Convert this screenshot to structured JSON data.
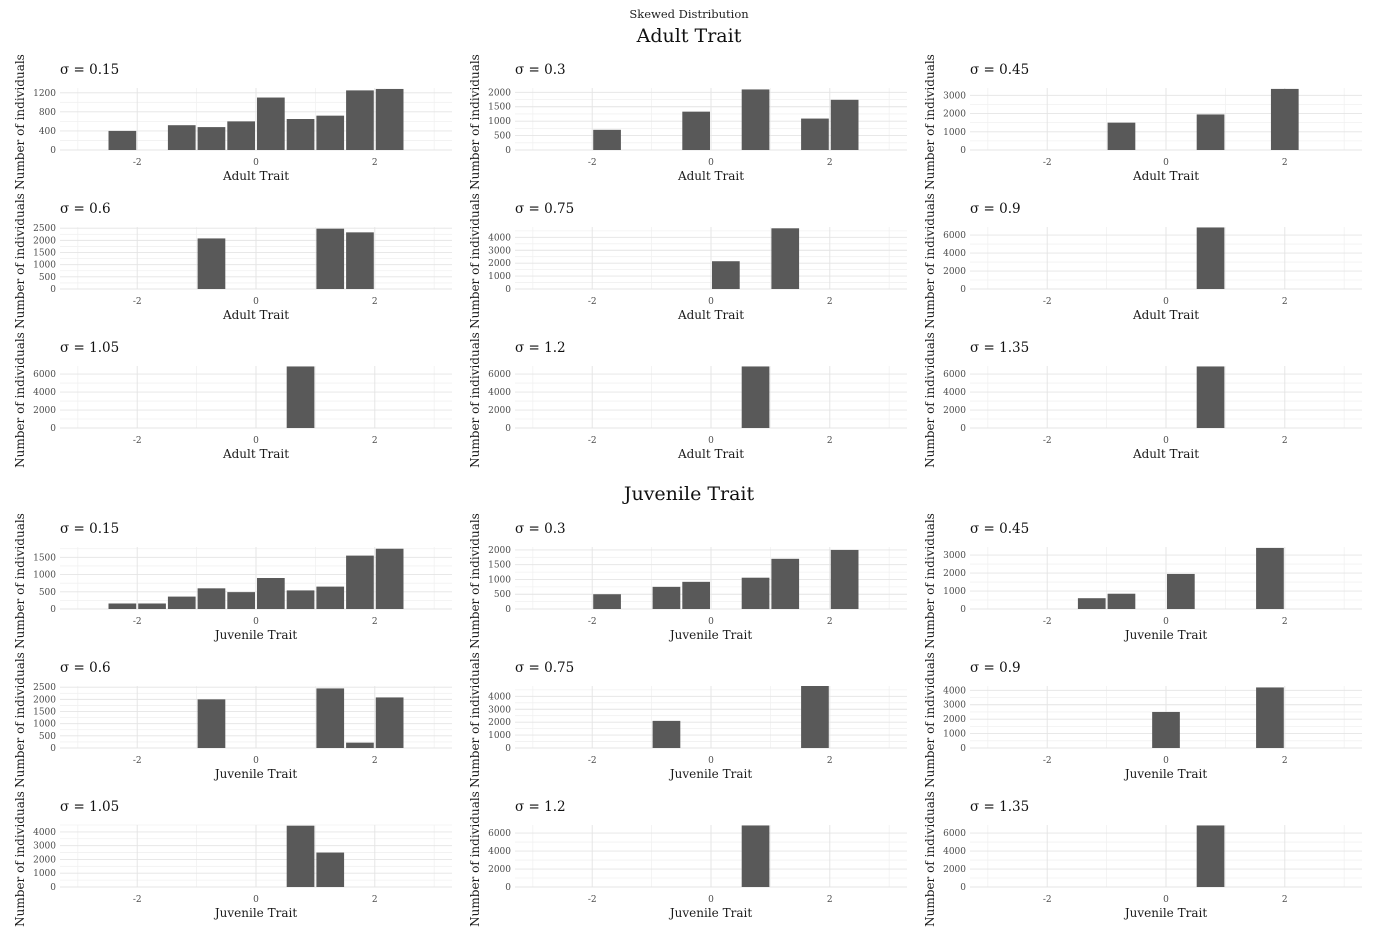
{
  "main_title": "Skewed Distribution",
  "chart_data": [
    {
      "section": "Adult Trait",
      "type": "bar",
      "bin_width": 0.5,
      "xlim": [
        -3.3,
        3.3
      ],
      "x_ticks": [
        -2,
        0,
        2
      ],
      "grid": true,
      "panels": [
        {
          "title": "σ = 0.15",
          "xlabel": "Adult Trait",
          "ylabel": "Number of individuals",
          "y_ticks": [
            0,
            400,
            800,
            1200
          ],
          "ylim": [
            0,
            1300
          ],
          "x": [
            -2.25,
            -1.25,
            -0.75,
            -0.25,
            0.25,
            0.75,
            1.25,
            1.75,
            2.25
          ],
          "values": [
            400,
            520,
            480,
            600,
            1100,
            650,
            720,
            1250,
            1280
          ]
        },
        {
          "title": "σ = 0.3",
          "xlabel": "Adult Trait",
          "ylabel": "Number of individuals",
          "y_ticks": [
            0,
            500,
            1000,
            1500,
            2000
          ],
          "ylim": [
            0,
            2150
          ],
          "x": [
            -1.75,
            -0.25,
            0.75,
            1.75,
            2.25
          ],
          "values": [
            700,
            1330,
            2100,
            1090,
            1740
          ]
        },
        {
          "title": "σ = 0.45",
          "xlabel": "Adult Trait",
          "ylabel": "Number of individuals",
          "y_ticks": [
            0,
            1000,
            2000,
            3000
          ],
          "ylim": [
            0,
            3400
          ],
          "x": [
            -0.75,
            0.75,
            2.0
          ],
          "values": [
            1500,
            1950,
            3350
          ]
        },
        {
          "title": "σ = 0.6",
          "xlabel": "Adult Trait",
          "ylabel": "Number of individuals",
          "y_ticks": [
            0,
            500,
            1000,
            1500,
            2000,
            2500
          ],
          "ylim": [
            0,
            2550
          ],
          "x": [
            -0.75,
            1.25,
            1.75
          ],
          "values": [
            2080,
            2480,
            2330
          ]
        },
        {
          "title": "σ = 0.75",
          "xlabel": "Adult Trait",
          "ylabel": "Number of individuals",
          "y_ticks": [
            0,
            1000,
            2000,
            3000,
            4000
          ],
          "ylim": [
            0,
            4800
          ],
          "x": [
            0.25,
            1.25
          ],
          "values": [
            2150,
            4700
          ]
        },
        {
          "title": "σ = 0.9",
          "xlabel": "Adult Trait",
          "ylabel": "Number of individuals",
          "y_ticks": [
            0,
            2000,
            4000,
            6000
          ],
          "ylim": [
            0,
            6900
          ],
          "x": [
            0.75
          ],
          "values": [
            6850
          ]
        },
        {
          "title": "σ = 1.05",
          "xlabel": "Adult Trait",
          "ylabel": "Number of individuals",
          "y_ticks": [
            0,
            2000,
            4000,
            6000
          ],
          "ylim": [
            0,
            6900
          ],
          "x": [
            0.75
          ],
          "values": [
            6850
          ]
        },
        {
          "title": "σ = 1.2",
          "xlabel": "Adult Trait",
          "ylabel": "Number of individuals",
          "y_ticks": [
            0,
            2000,
            4000,
            6000
          ],
          "ylim": [
            0,
            6900
          ],
          "x": [
            0.75
          ],
          "values": [
            6850
          ]
        },
        {
          "title": "σ = 1.35",
          "xlabel": "Adult Trait",
          "ylabel": "Number of individuals",
          "y_ticks": [
            0,
            2000,
            4000,
            6000
          ],
          "ylim": [
            0,
            6900
          ],
          "x": [
            0.75
          ],
          "values": [
            6850
          ]
        }
      ]
    },
    {
      "section": "Juvenile Trait",
      "type": "bar",
      "bin_width": 0.5,
      "xlim": [
        -3.3,
        3.3
      ],
      "x_ticks": [
        -2,
        0,
        2
      ],
      "grid": true,
      "panels": [
        {
          "title": "σ = 0.15",
          "xlabel": "Juvenile Trait",
          "ylabel": "Number of individuals",
          "y_ticks": [
            0,
            500,
            1000,
            1500
          ],
          "ylim": [
            0,
            1800
          ],
          "x": [
            -2.25,
            -1.75,
            -1.25,
            -0.75,
            -0.25,
            0.25,
            0.75,
            1.25,
            1.75,
            2.25
          ],
          "values": [
            160,
            160,
            360,
            600,
            490,
            900,
            540,
            650,
            1550,
            1750
          ]
        },
        {
          "title": "σ = 0.3",
          "xlabel": "Juvenile Trait",
          "ylabel": "Number of individuals",
          "y_ticks": [
            0,
            500,
            1000,
            1500,
            2000
          ],
          "ylim": [
            0,
            2100
          ],
          "x": [
            -1.75,
            -0.75,
            -0.25,
            0.75,
            1.25,
            2.25
          ],
          "values": [
            500,
            750,
            920,
            1060,
            1700,
            2000
          ]
        },
        {
          "title": "σ = 0.45",
          "xlabel": "Juvenile Trait",
          "ylabel": "Number of individuals",
          "y_ticks": [
            0,
            1000,
            2000,
            3000
          ],
          "ylim": [
            0,
            3450
          ],
          "x": [
            -1.25,
            -0.75,
            0.25,
            1.75
          ],
          "values": [
            600,
            850,
            1950,
            3400
          ]
        },
        {
          "title": "σ = 0.6",
          "xlabel": "Juvenile Trait",
          "ylabel": "Number of individuals",
          "y_ticks": [
            0,
            500,
            1000,
            1500,
            2000,
            2500
          ],
          "ylim": [
            0,
            2550
          ],
          "x": [
            -0.75,
            1.25,
            1.75,
            2.25
          ],
          "values": [
            2000,
            2450,
            220,
            2080
          ]
        },
        {
          "title": "σ = 0.75",
          "xlabel": "Juvenile Trait",
          "ylabel": "Number of individuals",
          "y_ticks": [
            0,
            1000,
            2000,
            3000,
            4000
          ],
          "ylim": [
            0,
            4800
          ],
          "x": [
            -0.75,
            1.75
          ],
          "values": [
            2100,
            4800
          ]
        },
        {
          "title": "σ = 0.9",
          "xlabel": "Juvenile Trait",
          "ylabel": "Number of individuals",
          "y_ticks": [
            0,
            1000,
            2000,
            3000,
            4000
          ],
          "ylim": [
            0,
            4300
          ],
          "x": [
            0.0,
            1.75
          ],
          "values": [
            2500,
            4200
          ]
        },
        {
          "title": "σ = 1.05",
          "xlabel": "Juvenile Trait",
          "ylabel": "Number of individuals",
          "y_ticks": [
            0,
            1000,
            2000,
            3000,
            4000
          ],
          "ylim": [
            0,
            4500
          ],
          "x": [
            0.75,
            1.25
          ],
          "values": [
            4450,
            2500
          ]
        },
        {
          "title": "σ = 1.2",
          "xlabel": "Juvenile Trait",
          "ylabel": "Number of individuals",
          "y_ticks": [
            0,
            2000,
            4000,
            6000
          ],
          "ylim": [
            0,
            6900
          ],
          "x": [
            0.75
          ],
          "values": [
            6850
          ]
        },
        {
          "title": "σ = 1.35",
          "xlabel": "Juvenile Trait",
          "ylabel": "Number of individuals",
          "y_ticks": [
            0,
            2000,
            4000,
            6000
          ],
          "ylim": [
            0,
            6900
          ],
          "x": [
            0.75
          ],
          "values": [
            6850
          ]
        }
      ]
    }
  ],
  "colors": {
    "bar": "#595959",
    "grid_major": "#e4e4e4",
    "grid_minor": "#f1f1f1",
    "text": "#1a1a1a",
    "tick": "#4d4d4d"
  }
}
